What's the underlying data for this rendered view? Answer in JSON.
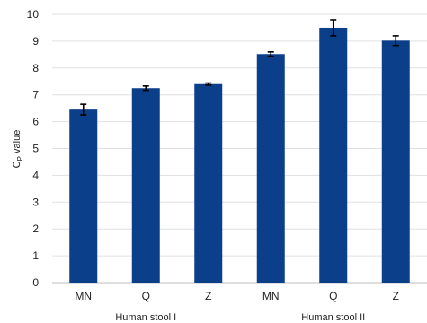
{
  "chart_data": {
    "type": "bar",
    "title": "",
    "ylabel_main": "C",
    "ylabel_sub": "P",
    "ylabel_rest": " value",
    "ylim": [
      0,
      10
    ],
    "yticks": [
      0,
      1,
      2,
      3,
      4,
      5,
      6,
      7,
      8,
      9,
      10
    ],
    "grid": true,
    "color": "#0b3f8a",
    "categories": [
      "MN",
      "Q",
      "Z",
      "MN",
      "Q",
      "Z"
    ],
    "groups": [
      {
        "label": "Human stool I",
        "indices": [
          0,
          1,
          2
        ]
      },
      {
        "label": "Human stool II",
        "indices": [
          3,
          4,
          5
        ]
      }
    ],
    "values": [
      6.45,
      7.25,
      7.4,
      8.52,
      9.5,
      9.02
    ],
    "errors": [
      0.2,
      0.08,
      0.04,
      0.08,
      0.3,
      0.18
    ]
  }
}
